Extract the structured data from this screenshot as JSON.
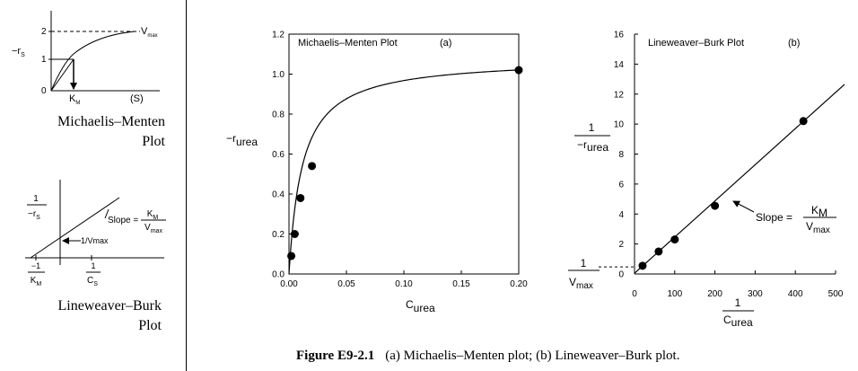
{
  "sidebar": {
    "mm_schematic": {
      "y_axis_label": "−r",
      "y_axis_label_sub": "S",
      "y_ticks": [
        "2",
        "1",
        "0"
      ],
      "vmax_label": "V",
      "vmax_label_sub": "max",
      "km_label": "K",
      "km_label_sub": "M",
      "x_axis_label": "(S)",
      "caption_line1": "Michaelis–Menten",
      "caption_line2": "Plot"
    },
    "lb_schematic": {
      "y_frac_num": "1",
      "y_frac_den": "−r",
      "y_frac_den_sub": "S",
      "slope_text": "Slope =",
      "slope_num": "K",
      "slope_num_sub": "M",
      "slope_den": "V",
      "slope_den_sub": "max",
      "intercept_label": "1/Vmax",
      "x_int_num": "−1",
      "x_int_den": "K",
      "x_int_den_sub": "M",
      "x_axis_num": "1",
      "x_axis_den": "C",
      "x_axis_den_sub": "S",
      "caption_line1": "Lineweaver–Burk",
      "caption_line2": "Plot"
    }
  },
  "chart_data": [
    {
      "type": "scatter",
      "title": "Michaelis–Menten Plot",
      "panel_tag": "(a)",
      "xlabel": "C",
      "xlabel_sub": "urea",
      "ylabel": "−r",
      "ylabel_sub": "urea",
      "xlim": [
        0,
        0.2
      ],
      "ylim": [
        0,
        1.2
      ],
      "x_ticks": [
        "0.00",
        "0.05",
        "0.10",
        "0.15",
        "0.20"
      ],
      "y_ticks": [
        "0.0",
        "0.2",
        "0.4",
        "0.6",
        "0.8",
        "1.0",
        "1.2"
      ],
      "points": [
        {
          "x": 0.002,
          "y": 0.09
        },
        {
          "x": 0.005,
          "y": 0.2
        },
        {
          "x": 0.01,
          "y": 0.38
        },
        {
          "x": 0.02,
          "y": 0.54
        },
        {
          "x": 0.2,
          "y": 1.02
        }
      ],
      "fit_curve": {
        "vmax": 1.08,
        "km": 0.0116
      }
    },
    {
      "type": "scatter",
      "title": "Lineweaver–Burk Plot",
      "panel_tag": "(b)",
      "xlabel_num": "1",
      "xlabel_den": "C",
      "xlabel_den_sub": "urea",
      "ylabel_num": "1",
      "ylabel_den": "−r",
      "ylabel_den_sub": "urea",
      "xlim": [
        0,
        500
      ],
      "ylim": [
        0,
        16
      ],
      "x_ticks": [
        "0",
        "100",
        "200",
        "300",
        "400",
        "500"
      ],
      "y_ticks": [
        "0",
        "2",
        "4",
        "6",
        "8",
        "10",
        "12",
        "14",
        "16"
      ],
      "points": [
        {
          "x": 20,
          "y": 0.55
        },
        {
          "x": 60,
          "y": 1.5
        },
        {
          "x": 100,
          "y": 2.3
        },
        {
          "x": 200,
          "y": 4.55
        },
        {
          "x": 420,
          "y": 10.2
        }
      ],
      "fit_line": {
        "intercept": 0.05,
        "slope": 0.0225,
        "x_end": 560
      },
      "intercept_label_num": "1",
      "intercept_label_den": "V",
      "intercept_label_den_sub": "max",
      "slope_text": "Slope =",
      "slope_num": "K",
      "slope_num_sub": "M",
      "slope_den": "V",
      "slope_den_sub": "max"
    }
  ],
  "caption": {
    "label": "Figure E9-2.1",
    "text": "(a) Michaelis–Menten plot; (b) Lineweaver–Burk plot."
  }
}
